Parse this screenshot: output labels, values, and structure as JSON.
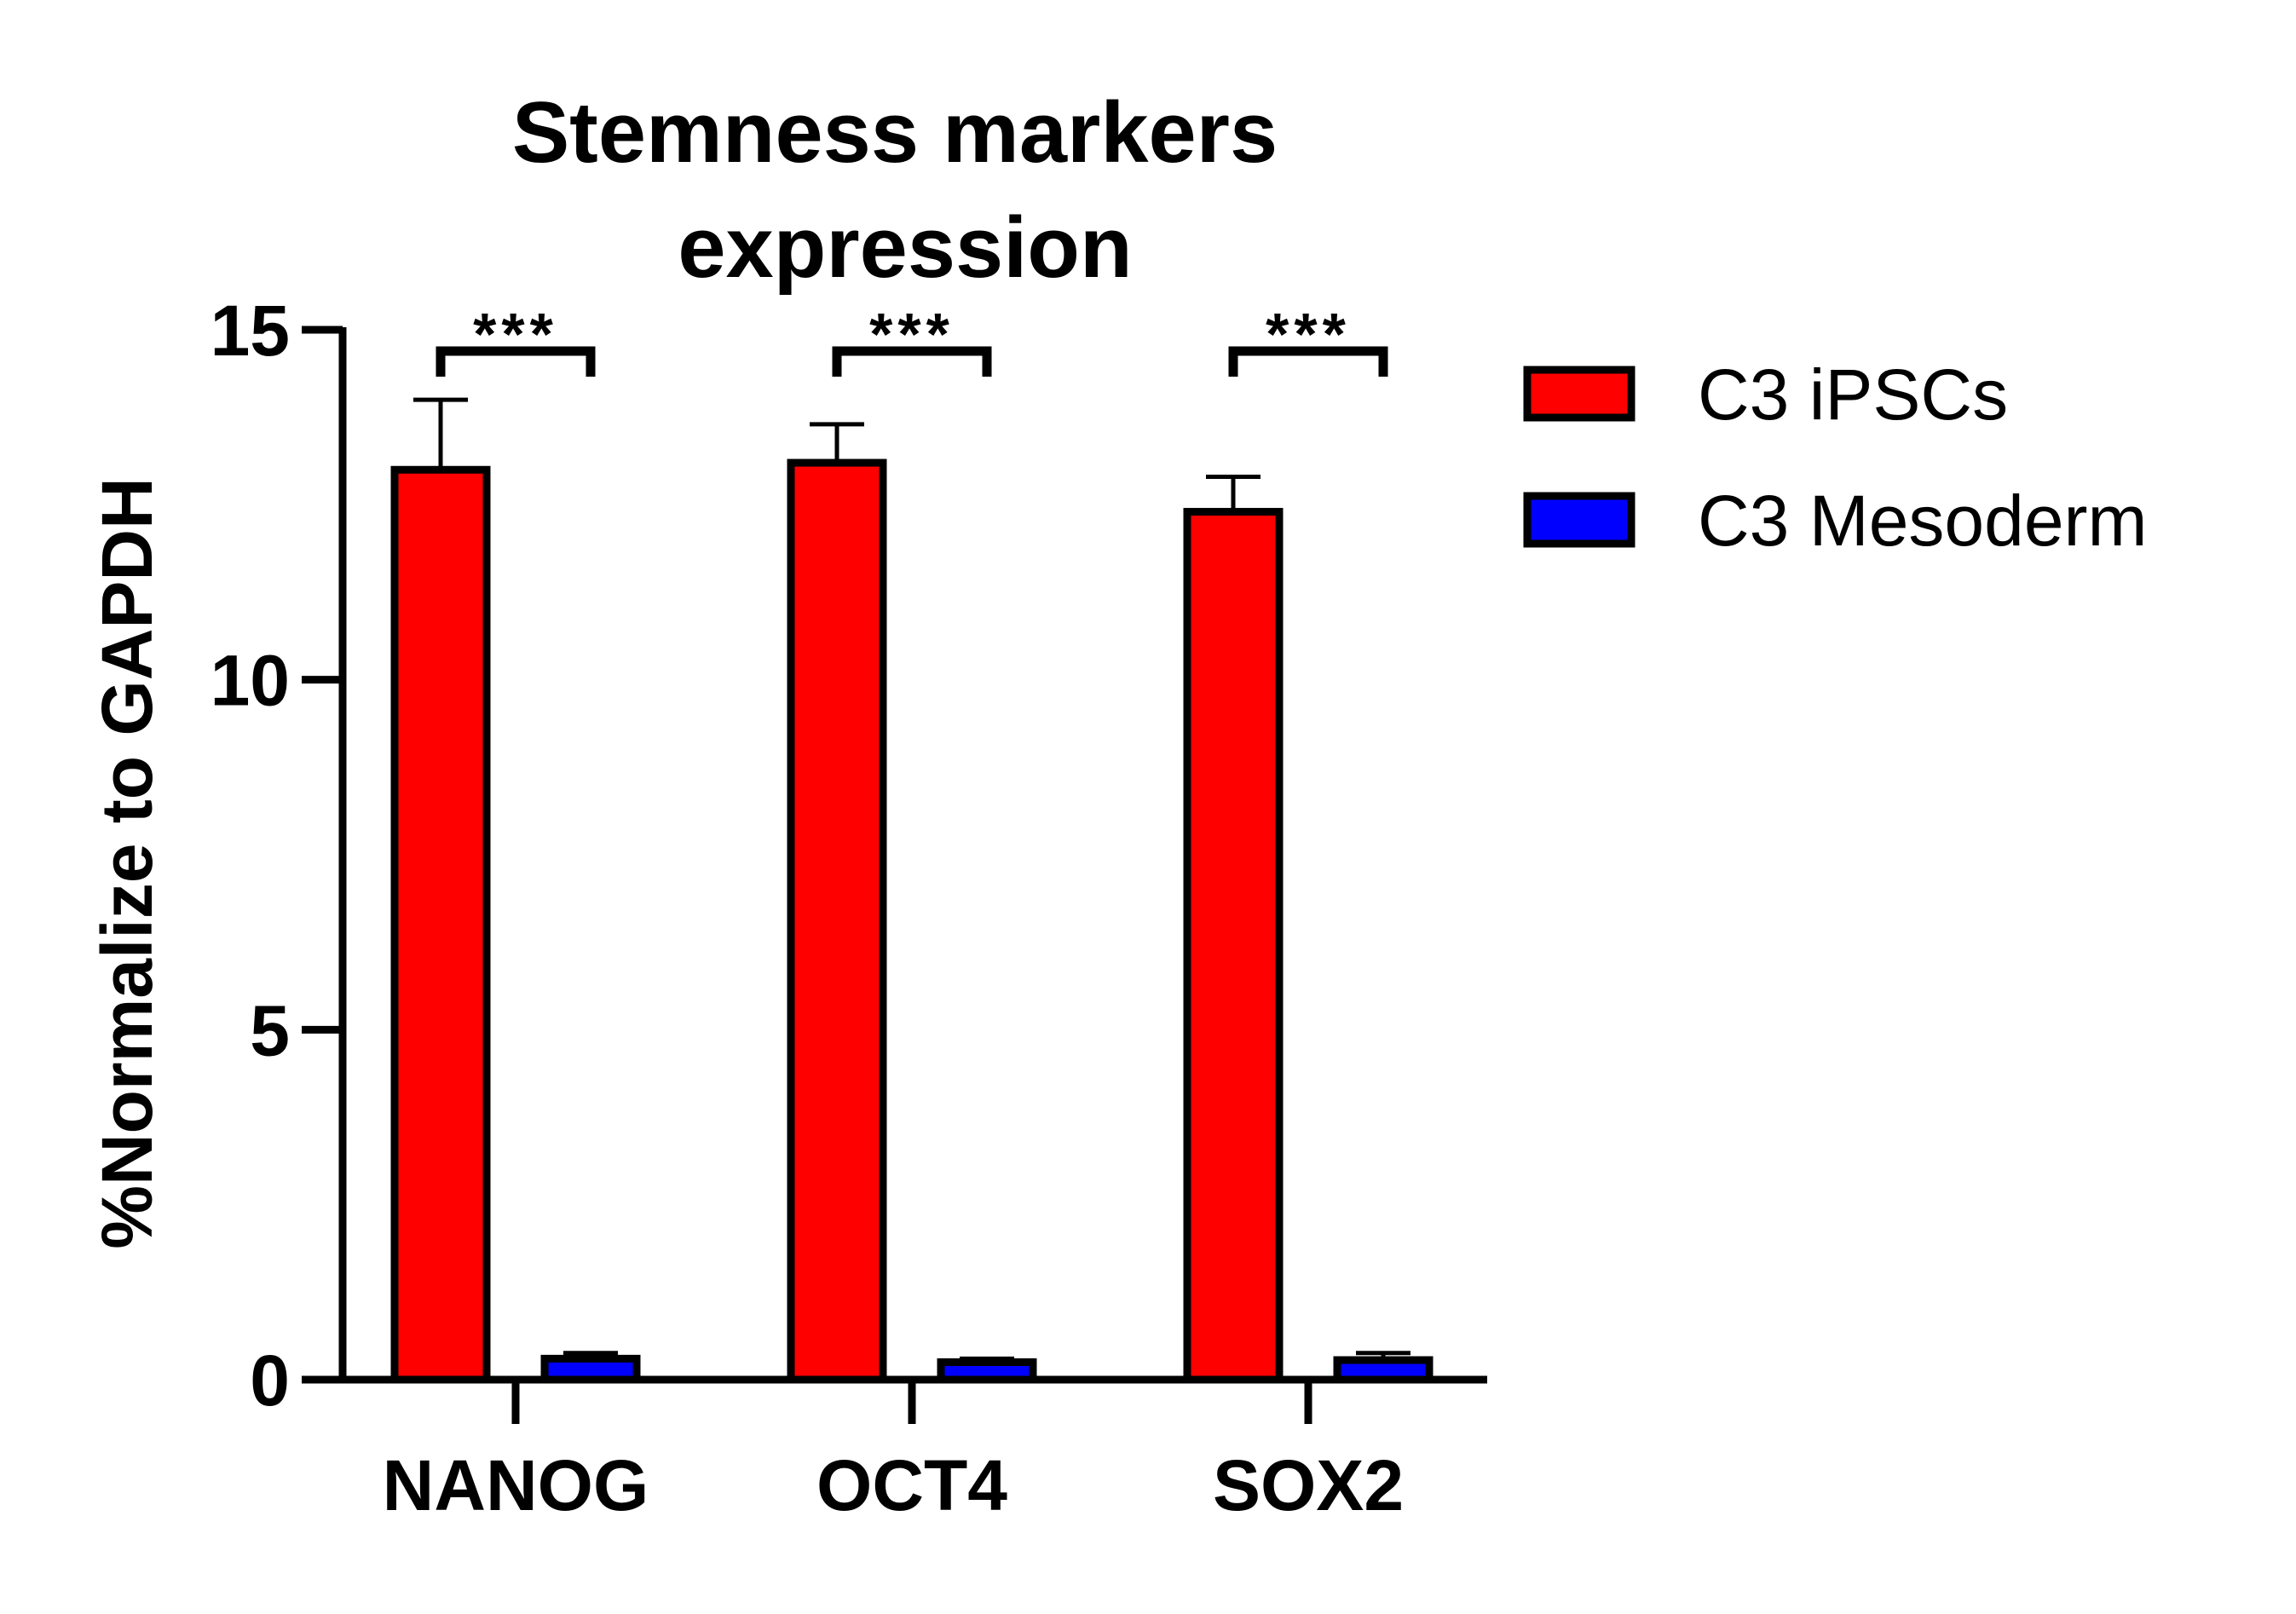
{
  "chart_data": {
    "type": "bar",
    "title_lines": [
      "Stemness markers",
      "expression"
    ],
    "xlabel": "",
    "ylabel": "%Normalize to GAPDH",
    "ylim": [
      0,
      15
    ],
    "yticks": [
      0,
      5,
      10,
      15
    ],
    "categories": [
      "NANOG",
      "OCT4",
      "SOX2"
    ],
    "series": [
      {
        "name": "C3 iPSCs",
        "color": "#ff0000",
        "values": [
          13.0,
          13.1,
          12.4
        ],
        "errors": [
          1.0,
          0.55,
          0.5
        ]
      },
      {
        "name": "C3 Mesoderm",
        "color": "#0000ff",
        "values": [
          0.3,
          0.25,
          0.28
        ],
        "errors": [
          0.08,
          0.05,
          0.1
        ]
      }
    ],
    "significance": [
      "***",
      "***",
      "***"
    ],
    "grid": false,
    "legend": "right"
  }
}
